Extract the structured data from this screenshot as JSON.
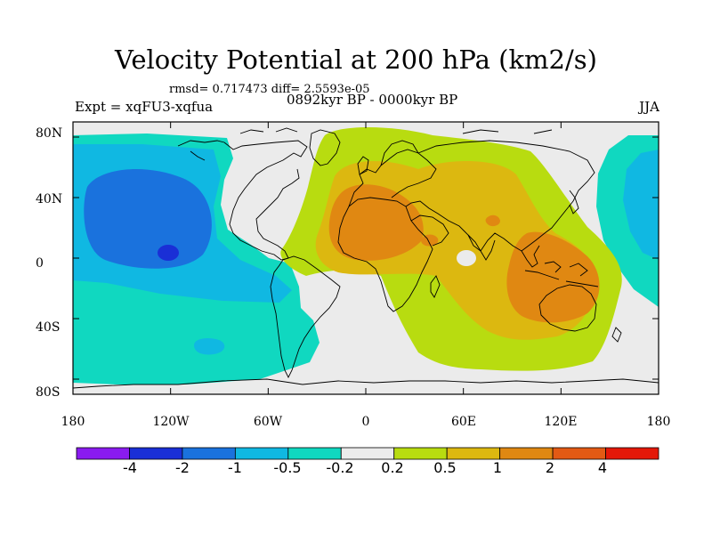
{
  "title": "Velocity Potential at 200 hPa (km2/s)",
  "stats": "rmsd= 0.717473 diff= 2.5593e-05",
  "experiment": "Expt = xqFU3-xqfua",
  "period": "0892kyr BP - 0000kyr BP",
  "season": "JJA",
  "map": {
    "projection": "cylindrical-equidistant",
    "lon_range": [
      -180,
      180
    ],
    "lat_range": [
      -90,
      90
    ],
    "y_ticks": [
      {
        "lat": 80,
        "label": "80N"
      },
      {
        "lat": 40,
        "label": "40N"
      },
      {
        "lat": 0,
        "label": "0"
      },
      {
        "lat": -40,
        "label": "40S"
      },
      {
        "lat": -80,
        "label": "80S"
      }
    ],
    "x_ticks": [
      {
        "lon": -180,
        "label": "180"
      },
      {
        "lon": -120,
        "label": "120W"
      },
      {
        "lon": -60,
        "label": "60W"
      },
      {
        "lon": 0,
        "label": "0"
      },
      {
        "lon": 60,
        "label": "60E"
      },
      {
        "lon": 120,
        "label": "120E"
      },
      {
        "lon": 180,
        "label": "180"
      }
    ]
  },
  "colorbar": {
    "colors": [
      "#8a1bf0",
      "#1a2fd6",
      "#1a72dd",
      "#10b8e2",
      "#10d8c0",
      "#ebebeb",
      "#b8dc10",
      "#dcb810",
      "#e08812",
      "#e35a14",
      "#e41808"
    ],
    "labels": [
      "-4",
      "-2",
      "-1",
      "-0.5",
      "-0.2",
      "0.2",
      "0.5",
      "1",
      "2",
      "4"
    ]
  }
}
